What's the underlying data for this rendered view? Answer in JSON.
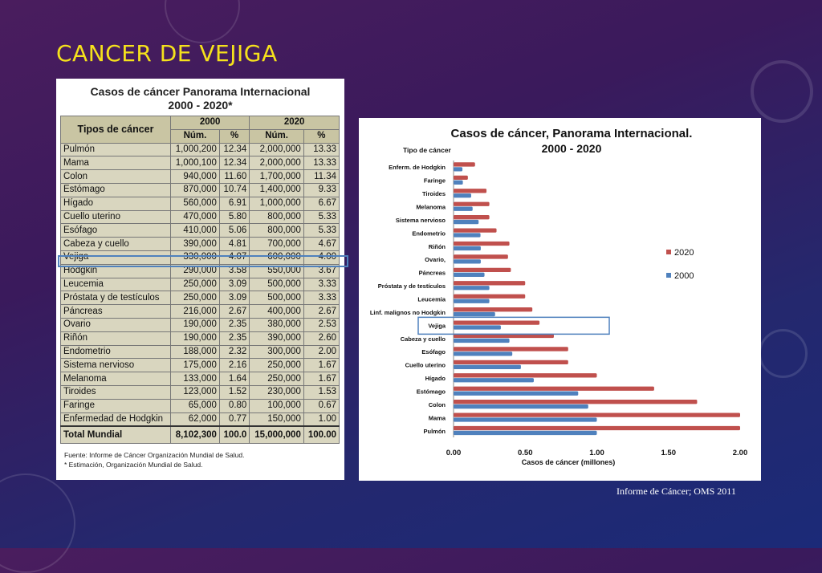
{
  "slide": {
    "title": "CANCER DE VEJIGA",
    "source": "Informe de Cáncer; OMS 2011"
  },
  "table": {
    "title_line1": "Casos de cáncer Panorama Internacional",
    "title_line2": "2000 - 2020*",
    "col_type": "Tipos de cáncer",
    "year_a": "2000",
    "year_b": "2020",
    "col_num": "Núm.",
    "col_pct": "%",
    "rows": [
      [
        "Pulmón",
        "1,000,200",
        "12.34",
        "2,000,000",
        "13.33"
      ],
      [
        "Mama",
        "1,000,100",
        "12.34",
        "2,000,000",
        "13.33"
      ],
      [
        "Colon",
        "940,000",
        "11.60",
        "1,700,000",
        "11.34"
      ],
      [
        "Estómago",
        "870,000",
        "10.74",
        "1,400,000",
        "9.33"
      ],
      [
        "Hígado",
        "560,000",
        "6.91",
        "1,000,000",
        "6.67"
      ],
      [
        "Cuello uterino",
        "470,000",
        "5.80",
        "800,000",
        "5.33"
      ],
      [
        "Esófago",
        "410,000",
        "5.06",
        "800,000",
        "5.33"
      ],
      [
        "Cabeza y cuello",
        "390,000",
        "4.81",
        "700,000",
        "4.67"
      ],
      [
        "Vejiga",
        "330,000",
        "4.07",
        "600,000",
        "4.00"
      ],
      [
        "Hodgkin",
        "290,000",
        "3.58",
        "550,000",
        "3.67"
      ],
      [
        "Leucemia",
        "250,000",
        "3.09",
        "500,000",
        "3.33"
      ],
      [
        "Próstata y de testículos",
        "250,000",
        "3.09",
        "500,000",
        "3.33"
      ],
      [
        "Páncreas",
        "216,000",
        "2.67",
        "400,000",
        "2.67"
      ],
      [
        "Ovario",
        "190,000",
        "2.35",
        "380,000",
        "2.53"
      ],
      [
        "Riñón",
        "190,000",
        "2.35",
        "390,000",
        "2.60"
      ],
      [
        "Endometrio",
        "188,000",
        "2.32",
        "300,000",
        "2.00"
      ],
      [
        "Sistema nervioso",
        "175,000",
        "2.16",
        "250,000",
        "1.67"
      ],
      [
        "Melanoma",
        "133,000",
        "1.64",
        "250,000",
        "1.67"
      ],
      [
        "Tiroides",
        "123,000",
        "1.52",
        "230,000",
        "1.53"
      ],
      [
        "Faringe",
        "65,000",
        "0.80",
        "100,000",
        "0.67"
      ],
      [
        "Enfermedad de Hodgkin",
        "62,000",
        "0.77",
        "150,000",
        "1.00"
      ]
    ],
    "total": [
      "Total Mundial",
      "8,102,300",
      "100.0",
      "15,000,000",
      "100.00"
    ],
    "footnote1": "Fuente: Informe de Cáncer Organización Mundial de Salud.",
    "footnote2": "* Estimación, Organización Mundial de Salud."
  },
  "chart_data": {
    "type": "bar",
    "orientation": "horizontal",
    "title": "Casos de cáncer, Panorama Internacional.",
    "subtitle": "2000 - 2020",
    "category_axis_title": "Tipo de cáncer",
    "xlabel": "Casos de cáncer (millones)",
    "xlim": [
      0,
      2.0
    ],
    "xticks": [
      "0.00",
      "0.50",
      "1.00",
      "1.50",
      "2.00"
    ],
    "categories": [
      "Pulmón",
      "Mama",
      "Colon",
      "Estómago",
      "Hígado",
      "Cuello uterino",
      "Esófago",
      "Cabeza y cuello",
      "Vejiga",
      "Linf. malignos no Hodgkin",
      "Leucemia",
      "Próstata y de testículos",
      "Páncreas",
      "Ovario,",
      "Riñón",
      "Endometrio",
      "Sistema nervioso",
      "Melanoma",
      "Tiroides",
      "Faringe",
      "Enferm. de Hodgkin"
    ],
    "series": [
      {
        "name": "2020",
        "color": "#c0504d",
        "values": [
          2.0,
          2.0,
          1.7,
          1.4,
          1.0,
          0.8,
          0.8,
          0.7,
          0.6,
          0.55,
          0.5,
          0.5,
          0.4,
          0.38,
          0.39,
          0.3,
          0.25,
          0.25,
          0.23,
          0.1,
          0.15
        ]
      },
      {
        "name": "2000",
        "color": "#4f81bd",
        "values": [
          1.0,
          1.0,
          0.94,
          0.87,
          0.56,
          0.47,
          0.41,
          0.39,
          0.33,
          0.29,
          0.25,
          0.25,
          0.216,
          0.19,
          0.19,
          0.188,
          0.175,
          0.133,
          0.123,
          0.065,
          0.062
        ]
      }
    ],
    "legend_position": "right",
    "highlight": "Vejiga",
    "grid": false
  }
}
